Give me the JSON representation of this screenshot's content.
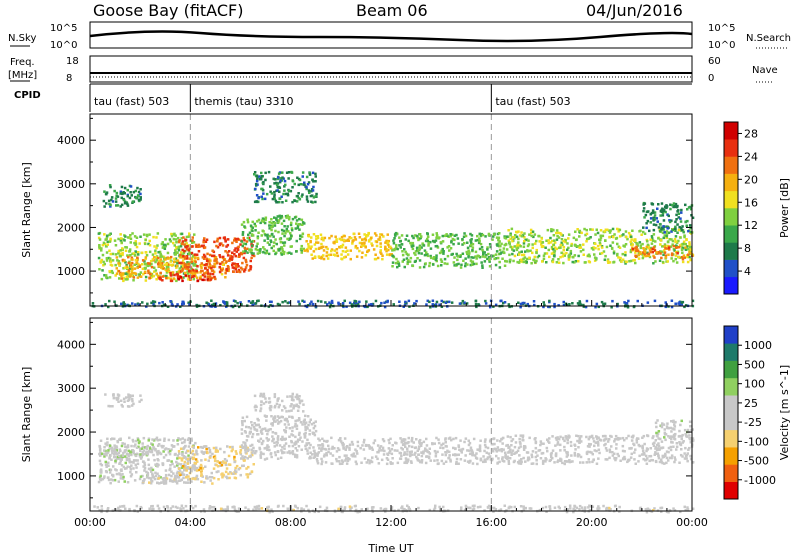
{
  "header": {
    "station": "Goose Bay (fitACF)",
    "beam": "Beam 06",
    "date": "04/Jun/2016"
  },
  "noise_panel": {
    "left_label": "N.Sky",
    "left_ticks": [
      "10^5",
      "10^0"
    ],
    "right_label": "N.Search",
    "right_ticks": [
      "10^5",
      "10^0"
    ]
  },
  "freq_panel": {
    "left_label_1": "Freq.",
    "left_label_2": "[MHz]",
    "left_ticks": [
      "18",
      "8"
    ],
    "right_label": "Nave",
    "right_ticks": [
      "60",
      "0"
    ]
  },
  "cpid_panel": {
    "label": "CPID",
    "modes": [
      {
        "name": "tau (fast) 503",
        "start_hour": 0
      },
      {
        "name": "themis (tau) 3310",
        "start_hour": 4
      },
      {
        "name": "tau (fast) 503",
        "start_hour": 16
      }
    ]
  },
  "chart_data": [
    {
      "type": "heatmap",
      "title": "",
      "xlabel": "Time UT",
      "ylabel": "Slant Range [km]",
      "xlim": [
        0,
        24
      ],
      "ylim": [
        200,
        4600
      ],
      "x_ticks": [
        "00:00",
        "04:00",
        "08:00",
        "12:00",
        "16:00",
        "20:00",
        "00:00"
      ],
      "y_ticks": [
        "1000",
        "2000",
        "3000",
        "4000"
      ],
      "colorbar": {
        "label": "Power [dB]",
        "ticks": [
          "4",
          "8",
          "12",
          "16",
          "20",
          "24",
          "28"
        ],
        "range": [
          0,
          30
        ],
        "colors": [
          "#1a1aff",
          "#2050c8",
          "#1e7a4a",
          "#3aa84a",
          "#7fd040",
          "#f0e020",
          "#f5b010",
          "#f07010",
          "#e83010",
          "#d00000"
        ]
      },
      "regions": [
        {
          "t0": 0.3,
          "t1": 4.2,
          "r0": 800,
          "r1": 1900,
          "level": 14
        },
        {
          "t0": 1.0,
          "t1": 5.5,
          "r0": 850,
          "r1": 1350,
          "level": 20
        },
        {
          "t0": 3.5,
          "t1": 6.5,
          "r0": 1000,
          "r1": 1800,
          "level": 24
        },
        {
          "t0": 2.5,
          "t1": 5.0,
          "r0": 800,
          "r1": 1000,
          "level": 26
        },
        {
          "t0": 6.0,
          "t1": 8.5,
          "r0": 1400,
          "r1": 2300,
          "level": 12
        },
        {
          "t0": 8.5,
          "t1": 12.0,
          "r0": 1300,
          "r1": 1900,
          "level": 18
        },
        {
          "t0": 12.0,
          "t1": 16.5,
          "r0": 1100,
          "r1": 1900,
          "level": 12
        },
        {
          "t0": 16.5,
          "t1": 24.0,
          "r0": 1200,
          "r1": 2000,
          "level": 14
        },
        {
          "t0": 21.5,
          "t1": 24.0,
          "r0": 1300,
          "r1": 1600,
          "level": 22
        },
        {
          "t0": 22.0,
          "t1": 24.0,
          "r0": 1900,
          "r1": 2600,
          "level": 8
        },
        {
          "t0": 0.0,
          "t1": 24.0,
          "r0": 200,
          "r1": 350,
          "level": 6
        },
        {
          "t0": 0.5,
          "t1": 2.0,
          "r0": 2500,
          "r1": 3000,
          "level": 8
        },
        {
          "t0": 6.5,
          "t1": 9.0,
          "r0": 2600,
          "r1": 3300,
          "level": 8
        }
      ]
    },
    {
      "type": "heatmap",
      "title": "",
      "xlabel": "Time UT",
      "ylabel": "Slant Range [km]",
      "xlim": [
        0,
        24
      ],
      "ylim": [
        200,
        4600
      ],
      "x_ticks": [
        "00:00",
        "04:00",
        "08:00",
        "12:00",
        "16:00",
        "20:00",
        "00:00"
      ],
      "y_ticks": [
        "1000",
        "2000",
        "3000",
        "4000"
      ],
      "colorbar": {
        "label": "Velocity [m s^-1]",
        "ticks": [
          "1000",
          "500",
          "100",
          "25",
          "-25",
          "-100",
          "-500",
          "-1000"
        ],
        "range": [
          -1200,
          1200
        ],
        "colors": [
          "#e00000",
          "#f06010",
          "#f5a000",
          "#f5d070",
          "#c8c8c8",
          "#c8c8c8",
          "#90d060",
          "#40a040",
          "#1e7a6a",
          "#2040c8"
        ]
      },
      "regions": [
        {
          "t0": 0.3,
          "t1": 4.2,
          "r0": 850,
          "r1": 1900,
          "level": 60
        },
        {
          "t0": 0.5,
          "t1": 3.0,
          "r0": 1450,
          "r1": 1750,
          "level": 150
        },
        {
          "t0": 3.5,
          "t1": 6.5,
          "r0": 950,
          "r1": 1700,
          "level": -300
        },
        {
          "t0": 2.0,
          "t1": 5.0,
          "r0": 850,
          "r1": 1000,
          "level": -100
        },
        {
          "t0": 6.0,
          "t1": 9.0,
          "r0": 1400,
          "r1": 2400,
          "level": 0
        },
        {
          "t0": 9.0,
          "t1": 16.5,
          "r0": 1300,
          "r1": 1900,
          "level": 0
        },
        {
          "t0": 16.5,
          "t1": 24.0,
          "r0": 1300,
          "r1": 1950,
          "level": 0
        },
        {
          "t0": 22.5,
          "t1": 24.0,
          "r0": 1900,
          "r1": 2300,
          "level": 80
        },
        {
          "t0": 0.0,
          "t1": 24.0,
          "r0": 200,
          "r1": 350,
          "level": -40
        },
        {
          "t0": 0.5,
          "t1": 2.0,
          "r0": 2600,
          "r1": 2900,
          "level": 0
        },
        {
          "t0": 6.5,
          "t1": 8.5,
          "r0": 2500,
          "r1": 2900,
          "level": 0
        }
      ]
    }
  ]
}
